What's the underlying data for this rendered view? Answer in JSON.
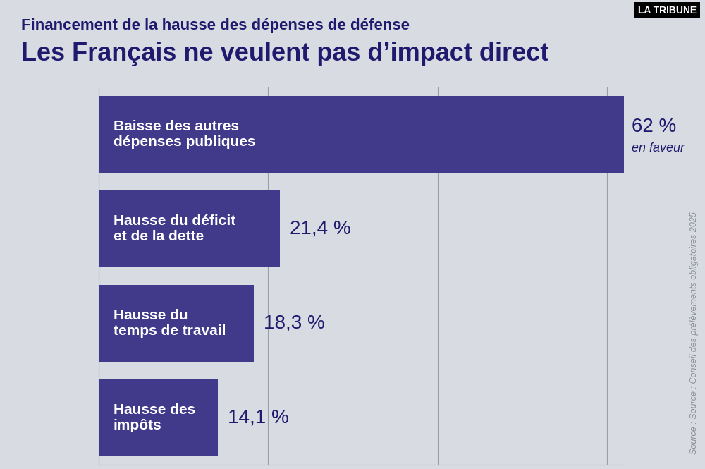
{
  "header": {
    "brand": "LA TRIBUNE"
  },
  "source": "Source : Source : Conseil des prélèvements obligatoires 2025",
  "chart_data": {
    "type": "bar",
    "orientation": "horizontal",
    "subtitle": "Financement de la hausse des dépenses de défense",
    "title": "Les Français ne veulent pas d’impact direct",
    "categories": [
      "Baisse des autres\ndépenses publiques",
      "Hausse du déficit\net de la dette",
      "Hausse du\ntemps de travail",
      "Hausse des\nimpôts"
    ],
    "values": [
      62,
      21.4,
      18.3,
      14.1
    ],
    "value_labels": [
      "62 %",
      "21,4 %",
      "18,3 %",
      "14,1 %"
    ],
    "value_notes": [
      "en faveur",
      null,
      null,
      null
    ],
    "color": "#413989",
    "xlim": [
      0,
      62
    ],
    "xticks": [
      0,
      20,
      40,
      60
    ],
    "grid": true,
    "data_labels": true,
    "tick_labels": false
  }
}
